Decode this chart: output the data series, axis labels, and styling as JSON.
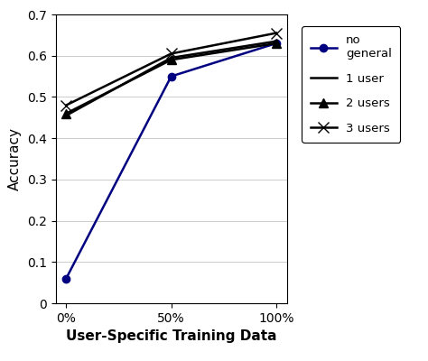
{
  "x_labels": [
    "0%",
    "50%",
    "100%"
  ],
  "x_values": [
    0,
    50,
    100
  ],
  "series": [
    {
      "label": "no\ngeneral",
      "y": [
        0.06,
        0.55,
        0.63
      ],
      "color": "#000080",
      "marker": "o",
      "markersize": 6,
      "linewidth": 1.8,
      "linestyle": "-",
      "markerfacecolor": "#000080",
      "markeredgecolor": "#000080"
    },
    {
      "label": "1 user",
      "y": [
        0.455,
        0.595,
        0.635
      ],
      "color": "#000000",
      "marker": null,
      "markersize": 0,
      "linewidth": 1.8,
      "linestyle": "-",
      "markerfacecolor": "#000000",
      "markeredgecolor": "#000000"
    },
    {
      "label": "2 users",
      "y": [
        0.46,
        0.59,
        0.63
      ],
      "color": "#000000",
      "marker": "^",
      "markersize": 7,
      "linewidth": 1.8,
      "linestyle": "-",
      "markerfacecolor": "#000000",
      "markeredgecolor": "#000000"
    },
    {
      "label": "3 users",
      "y": [
        0.48,
        0.605,
        0.655
      ],
      "color": "#000000",
      "marker": "x",
      "markersize": 9,
      "linewidth": 1.8,
      "linestyle": "-",
      "markerfacecolor": "#000000",
      "markeredgecolor": "#000000"
    }
  ],
  "xlabel": "User-Specific Training Data",
  "ylabel": "Accuracy",
  "ylim": [
    0,
    0.7
  ],
  "yticks": [
    0,
    0.1,
    0.2,
    0.3,
    0.4,
    0.5,
    0.6,
    0.7
  ],
  "grid": true,
  "grid_color": "#cccccc",
  "grid_linestyle": "-",
  "grid_linewidth": 0.7,
  "background_color": "#ffffff",
  "label_fontsize": 11,
  "tick_fontsize": 10,
  "legend_fontsize": 9.5
}
